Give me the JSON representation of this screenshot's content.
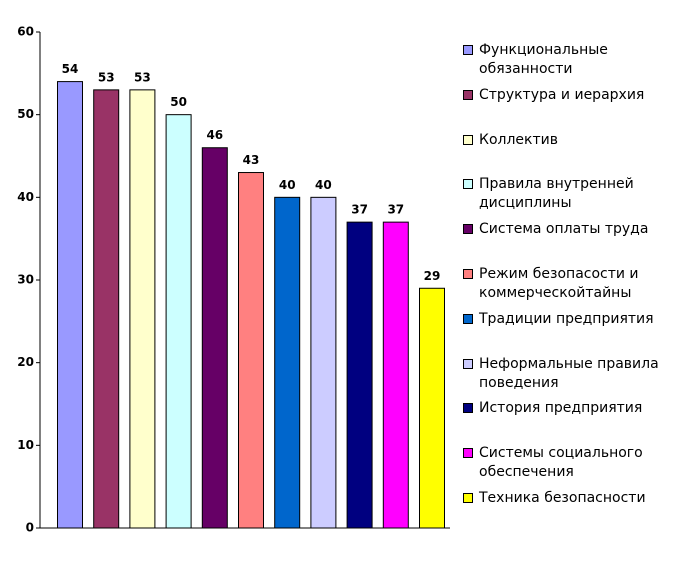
{
  "chart_data": {
    "type": "bar",
    "categories": [
      "Функциональные обязанности",
      "Структура и иерархия",
      "Коллектив",
      "Правила внутренней дисциплины",
      "Система оплаты труда",
      "Режим безопасости и коммерческойтайны",
      "Традиции предприятия",
      "Неформальные правила поведения",
      "История предприятия",
      "Системы социального обеспечения",
      "Техника безопасности"
    ],
    "values": [
      54,
      53,
      53,
      50,
      46,
      43,
      40,
      40,
      37,
      37,
      29
    ],
    "colors": [
      "#9999ff",
      "#993366",
      "#ffffcc",
      "#ccffff",
      "#660066",
      "#ff8080",
      "#0066cc",
      "#ccccff",
      "#000080",
      "#ff00ff",
      "#ffff00"
    ],
    "ylim": [
      0,
      60
    ],
    "yticks": [
      0,
      10,
      20,
      30,
      40,
      50,
      60
    ],
    "legend": "right"
  }
}
